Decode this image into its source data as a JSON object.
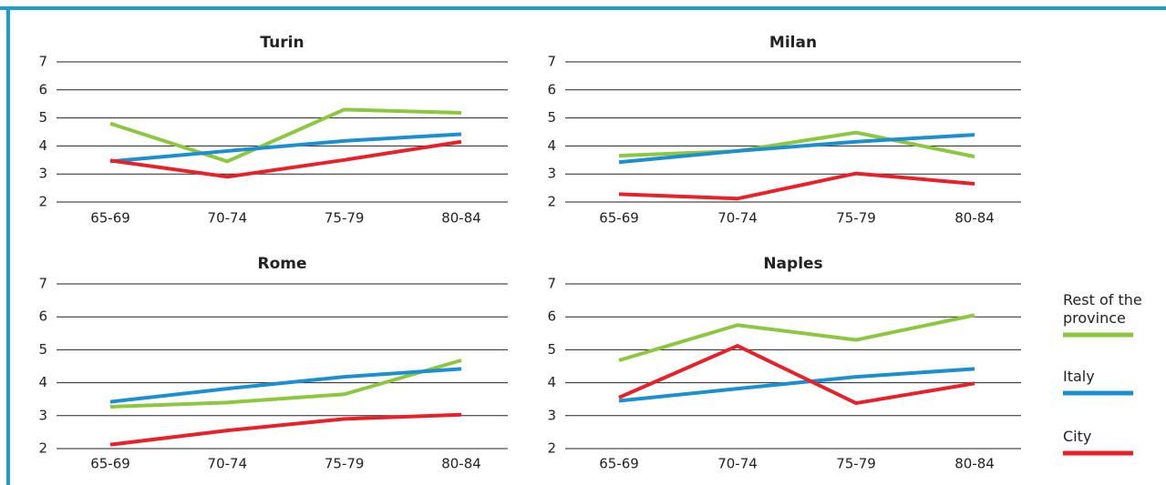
{
  "chart_data": [
    {
      "type": "line",
      "title": "Turin",
      "categories": [
        "65-69",
        "70-74",
        "75-79",
        "80-84"
      ],
      "ylim": [
        2,
        7
      ],
      "yticks": [
        2,
        3,
        4,
        5,
        6,
        7
      ],
      "grid": true,
      "series": [
        {
          "color": "#8dc63f",
          "values": [
            4.8,
            3.45,
            5.3,
            5.18
          ]
        },
        {
          "color": "#1b8fcf",
          "values": [
            3.45,
            3.82,
            4.18,
            4.42
          ]
        },
        {
          "color": "#e8202a",
          "values": [
            3.48,
            2.9,
            3.5,
            4.15
          ]
        }
      ]
    },
    {
      "type": "line",
      "title": "Milan",
      "categories": [
        "65-69",
        "70-74",
        "75-79",
        "80-84"
      ],
      "ylim": [
        2,
        7
      ],
      "yticks": [
        2,
        3,
        4,
        5,
        6,
        7
      ],
      "grid": true,
      "series": [
        {
          "color": "#8dc63f",
          "values": [
            3.65,
            3.82,
            4.48,
            3.62
          ]
        },
        {
          "color": "#1b8fcf",
          "values": [
            3.42,
            3.82,
            4.15,
            4.4
          ]
        },
        {
          "color": "#e8202a",
          "values": [
            2.28,
            2.12,
            3.02,
            2.65
          ]
        }
      ]
    },
    {
      "type": "line",
      "title": "Rome",
      "categories": [
        "65-69",
        "70-74",
        "75-79",
        "80-84"
      ],
      "ylim": [
        2,
        7
      ],
      "yticks": [
        2,
        3,
        4,
        5,
        6,
        7
      ],
      "grid": true,
      "series": [
        {
          "color": "#8dc63f",
          "values": [
            3.27,
            3.4,
            3.65,
            4.68
          ]
        },
        {
          "color": "#1b8fcf",
          "values": [
            3.42,
            3.82,
            4.18,
            4.42
          ]
        },
        {
          "color": "#e8202a",
          "values": [
            2.12,
            2.55,
            2.9,
            3.03
          ]
        }
      ]
    },
    {
      "type": "line",
      "title": "Naples",
      "categories": [
        "65-69",
        "70-74",
        "75-79",
        "80-84"
      ],
      "ylim": [
        2,
        7
      ],
      "yticks": [
        2,
        3,
        4,
        5,
        6,
        7
      ],
      "grid": true,
      "series": [
        {
          "name": "Rest of the province",
          "color": "#8dc63f",
          "values": [
            4.68,
            5.75,
            5.3,
            6.05
          ]
        },
        {
          "name": "Italy",
          "color": "#1b8fcf",
          "values": [
            3.45,
            3.82,
            4.18,
            4.42
          ]
        },
        {
          "name": "City",
          "color": "#e8202a",
          "values": [
            3.55,
            5.12,
            3.38,
            3.98
          ]
        }
      ]
    }
  ]
}
